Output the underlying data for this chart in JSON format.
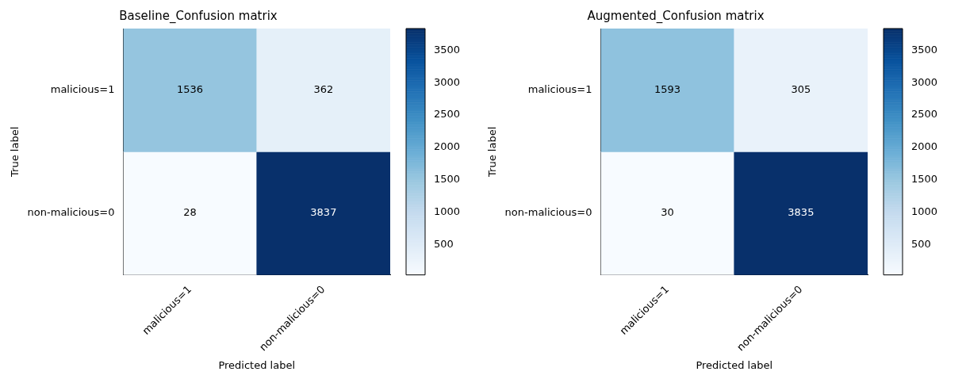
{
  "chart_data": [
    {
      "type": "heatmap",
      "title": "Baseline_Confusion matrix",
      "xlabel": "Predicted label",
      "ylabel": "True label",
      "categories": [
        "malicious=1",
        "non-malicious=0"
      ],
      "y_categories": [
        "malicious=1",
        "non-malicious=0"
      ],
      "cells": [
        [
          1536,
          362
        ],
        [
          28,
          3837
        ]
      ],
      "data_labels": true,
      "clim": [
        28,
        3837
      ],
      "cticks": [
        500,
        1000,
        1500,
        2000,
        2500,
        3000,
        3500
      ]
    },
    {
      "type": "heatmap",
      "title": "Augmented_Confusion matrix",
      "xlabel": "Predicted label",
      "ylabel": "True label",
      "categories": [
        "malicious=1",
        "non-malicious=0"
      ],
      "y_categories": [
        "malicious=1",
        "non-malicious=0"
      ],
      "cells": [
        [
          1593,
          305
        ],
        [
          30,
          3835
        ]
      ],
      "data_labels": true,
      "clim": [
        30,
        3835
      ],
      "cticks": [
        500,
        1000,
        1500,
        2000,
        2500,
        3000,
        3500
      ]
    }
  ]
}
